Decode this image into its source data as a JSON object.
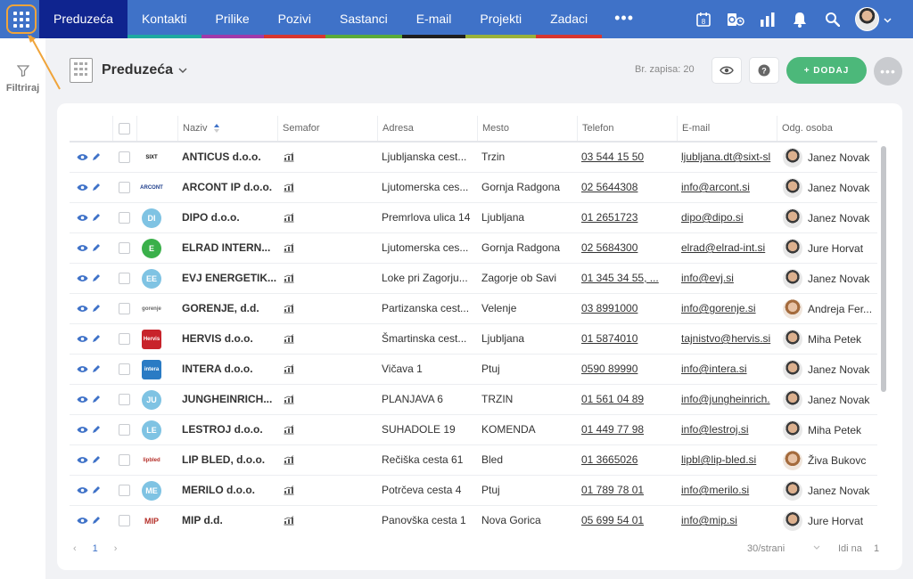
{
  "nav": {
    "items": [
      {
        "label": "Preduzeća",
        "bar": "#0f248f"
      },
      {
        "label": "Kontakti",
        "bar": "#1fa8a0"
      },
      {
        "label": "Prilike",
        "bar": "#a03aaa"
      },
      {
        "label": "Pozivi",
        "bar": "#d8362f"
      },
      {
        "label": "Sastanci",
        "bar": "#5aab3a"
      },
      {
        "label": "E-mail",
        "bar": "#1f1f1f"
      },
      {
        "label": "Projekti",
        "bar": "#9ab23a"
      },
      {
        "label": "Zadaci",
        "bar": "#d8362f"
      }
    ],
    "more": "•••",
    "calendar_day": "8"
  },
  "filter": {
    "label": "Filtriraj"
  },
  "header": {
    "title": "Preduzeća",
    "record_count": "Br. zapisa: 20",
    "add_label": "+ DODAJ"
  },
  "columns": [
    "Naziv",
    "Semafor",
    "Adresa",
    "Mesto",
    "Telefon",
    "E-mail",
    "Odg. osoba"
  ],
  "rows": [
    {
      "name": "ANTICUS d.o.o.",
      "address": "Ljubljanska cest...",
      "city": "Trzin",
      "phone": "03 544 15 50",
      "email": "ljubljana.dt@sixt-sl",
      "person": "Janez Novak",
      "logo": "SIXT",
      "logo_color": "#ffffff",
      "logo_text_color": "#111111",
      "gender": "m"
    },
    {
      "name": "ARCONT IP d.o.o.",
      "address": "Ljutomerska ces...",
      "city": "Gornja Radgona",
      "phone": "02 5644308",
      "email": "info@arcont.si",
      "person": "Janez Novak",
      "logo": "ARCONT",
      "logo_color": "#ffffff",
      "logo_text_color": "#1c3c8a",
      "gender": "m"
    },
    {
      "name": "DIPO d.o.o.",
      "address": "Premrlova ulica 14",
      "city": "Ljubljana",
      "phone": "01 2651723",
      "email": "dipo@dipo.si",
      "person": "Janez Novak",
      "logo": "DI",
      "logo_color": "#7fc3e3",
      "logo_text_color": "#ffffff",
      "gender": "m"
    },
    {
      "name": "ELRAD INTERN...",
      "address": "Ljutomerska ces...",
      "city": "Gornja Radgona",
      "phone": "02 5684300",
      "email": "elrad@elrad-int.si",
      "person": "Jure Horvat",
      "logo": "E",
      "logo_color": "#3ab04a",
      "logo_text_color": "#ffffff",
      "gender": "m"
    },
    {
      "name": "EVJ ENERGETIK...",
      "address": "Loke pri Zagorju...",
      "city": "Zagorje ob Savi",
      "phone": "01 345 34 55, ...",
      "email": "info@evj.si",
      "person": "Janez Novak",
      "logo": "EE",
      "logo_color": "#7fc3e3",
      "logo_text_color": "#ffffff",
      "gender": "m"
    },
    {
      "name": "GORENJE, d.d.",
      "address": "Partizanska cest...",
      "city": "Velenje",
      "phone": "03 8991000",
      "email": "info@gorenje.si",
      "person": "Andreja Fer...",
      "logo": "gorenje",
      "logo_color": "#ffffff",
      "logo_text_color": "#666666",
      "gender": "f"
    },
    {
      "name": "HERVIS d.o.o.",
      "address": "Šmartinska cest...",
      "city": "Ljubljana",
      "phone": "01 5874010",
      "email": "tajnistvo@hervis.si",
      "person": "Miha Petek",
      "logo": "Hervis",
      "logo_color": "#c8232b",
      "logo_text_color": "#ffffff",
      "gender": "m"
    },
    {
      "name": "INTERA d.o.o.",
      "address": "Vičava 1",
      "city": "Ptuj",
      "phone": "0590 89990",
      "email": "info@intera.si",
      "person": "Janez Novak",
      "logo": "intera",
      "logo_color": "#2a7bc4",
      "logo_text_color": "#ffffff",
      "gender": "m"
    },
    {
      "name": "JUNGHEINRICH...",
      "address": "PLANJAVA 6",
      "city": "TRZIN",
      "phone": "01 561 04 89",
      "email": "info@jungheinrich.",
      "person": "Janez Novak",
      "logo": "JU",
      "logo_color": "#7fc3e3",
      "logo_text_color": "#ffffff",
      "gender": "m"
    },
    {
      "name": "LESTROJ d.o.o.",
      "address": "SUHADOLE 19",
      "city": "KOMENDA",
      "phone": "01 449 77 98",
      "email": "info@lestroj.si",
      "person": "Miha Petek",
      "logo": "LE",
      "logo_color": "#7fc3e3",
      "logo_text_color": "#ffffff",
      "gender": "m"
    },
    {
      "name": "LIP BLED, d.o.o.",
      "address": "Rečiška cesta 61",
      "city": "Bled",
      "phone": "01 3665026",
      "email": "lipbl@lip-bled.si",
      "person": "Živa Bukovc",
      "logo": "lipbled",
      "logo_color": "#ffffff",
      "logo_text_color": "#b5302a",
      "gender": "f"
    },
    {
      "name": "MERILO d.o.o.",
      "address": "Potrčeva cesta 4",
      "city": "Ptuj",
      "phone": "01 789 78 01",
      "email": "info@merilo.si",
      "person": "Janez Novak",
      "logo": "ME",
      "logo_color": "#7fc3e3",
      "logo_text_color": "#ffffff",
      "gender": "m"
    },
    {
      "name": "MIP d.d.",
      "address": "Panovška cesta 1",
      "city": "Nova Gorica",
      "phone": "05 699 54 01",
      "email": "info@mip.si",
      "person": "Jure Horvat",
      "logo": "MIP",
      "logo_color": "#ffffff",
      "logo_text_color": "#b5302a",
      "gender": "m"
    }
  ],
  "footer": {
    "prev": "‹",
    "page": "1",
    "next": "›",
    "per_page": "30/strani",
    "goto_label": "Idi na",
    "goto_value": "1"
  }
}
